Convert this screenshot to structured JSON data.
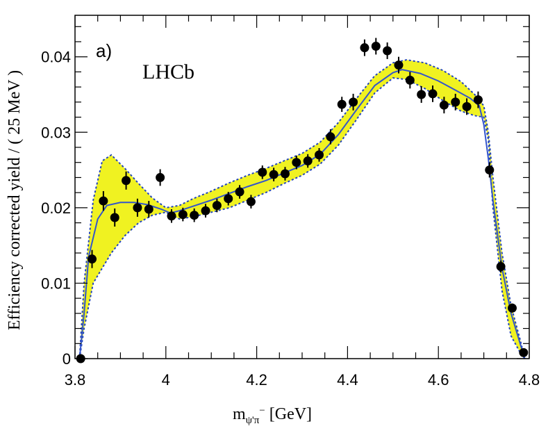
{
  "chart_data": {
    "type": "scatter",
    "panel_label": "a)",
    "experiment_label": "LHCb",
    "xlabel_main": "m",
    "xlabel_sub": "ψ'π",
    "xlabel_sup": "−",
    "xlabel_unit": " [GeV]",
    "ylabel": "Efficiency corrected yield / ( 25 MeV )",
    "xlim": [
      3.8,
      4.8
    ],
    "ylim": [
      0,
      0.0455
    ],
    "x_ticks": [
      3.8,
      4.0,
      4.2,
      4.4,
      4.6,
      4.8
    ],
    "x_tick_labels": [
      "3.8",
      "4",
      "4.2",
      "4.4",
      "4.6",
      "4.8"
    ],
    "y_ticks": [
      0,
      0.01,
      0.02,
      0.03,
      0.04
    ],
    "y_tick_labels": [
      "0",
      "0.01",
      "0.02",
      "0.03",
      "0.04"
    ],
    "colors": {
      "band_fill": "#f0f221",
      "fit_line": "#3355cc",
      "band_edge": "#2244bb",
      "points": "#000000"
    },
    "data_points": {
      "x": [
        3.8125,
        3.8375,
        3.8625,
        3.8875,
        3.9125,
        3.9375,
        3.9625,
        3.9875,
        4.0125,
        4.0375,
        4.0625,
        4.0875,
        4.1125,
        4.1375,
        4.1625,
        4.1875,
        4.2125,
        4.2375,
        4.2625,
        4.2875,
        4.3125,
        4.3375,
        4.3625,
        4.3875,
        4.4125,
        4.4375,
        4.4625,
        4.4875,
        4.5125,
        4.5375,
        4.5625,
        4.5875,
        4.6125,
        4.6375,
        4.6625,
        4.6875,
        4.7125,
        4.7375,
        4.7625,
        4.7875
      ],
      "y": [
        0.0,
        0.0132,
        0.0209,
        0.0187,
        0.0236,
        0.02,
        0.0198,
        0.024,
        0.0189,
        0.0191,
        0.019,
        0.0196,
        0.0203,
        0.0212,
        0.0221,
        0.0208,
        0.0247,
        0.0244,
        0.0245,
        0.026,
        0.0262,
        0.027,
        0.0294,
        0.0337,
        0.034,
        0.0412,
        0.0414,
        0.0408,
        0.0389,
        0.0369,
        0.035,
        0.0351,
        0.0336,
        0.034,
        0.0334,
        0.0343,
        0.025,
        0.0122,
        0.0067,
        0.0008
      ],
      "err": [
        0.0004,
        0.0012,
        0.0013,
        0.0012,
        0.0012,
        0.0012,
        0.0011,
        0.0011,
        0.0009,
        0.0009,
        0.0009,
        0.0009,
        0.0009,
        0.0009,
        0.0009,
        0.0009,
        0.0009,
        0.0009,
        0.0009,
        0.0009,
        0.0009,
        0.0009,
        0.001,
        0.001,
        0.0011,
        0.0011,
        0.0011,
        0.0011,
        0.0011,
        0.0011,
        0.0011,
        0.0011,
        0.0011,
        0.0011,
        0.0011,
        0.0011,
        0.001,
        0.0008,
        0.0006,
        0.0004
      ]
    },
    "fit_curve": {
      "x": [
        3.81,
        3.82,
        3.83,
        3.85,
        3.87,
        3.9,
        3.93,
        3.96,
        3.99,
        4.01,
        4.03,
        4.06,
        4.1,
        4.14,
        4.18,
        4.22,
        4.26,
        4.3,
        4.34,
        4.38,
        4.42,
        4.46,
        4.5,
        4.52,
        4.56,
        4.6,
        4.64,
        4.67,
        4.69,
        4.7,
        4.71,
        4.72,
        4.74,
        4.76,
        4.78,
        4.79
      ],
      "y": [
        0.0,
        0.006,
        0.0135,
        0.0185,
        0.0203,
        0.0207,
        0.0207,
        0.0204,
        0.0198,
        0.0193,
        0.0196,
        0.0202,
        0.021,
        0.0219,
        0.0228,
        0.0236,
        0.0246,
        0.0256,
        0.0271,
        0.0297,
        0.033,
        0.0362,
        0.0379,
        0.0383,
        0.0378,
        0.0368,
        0.0355,
        0.0345,
        0.0335,
        0.031,
        0.0265,
        0.021,
        0.012,
        0.006,
        0.002,
        0.0
      ]
    },
    "band_upper": {
      "x": [
        3.81,
        3.82,
        3.84,
        3.86,
        3.88,
        3.91,
        3.94,
        3.97,
        4.0,
        4.03,
        4.06,
        4.1,
        4.14,
        4.18,
        4.22,
        4.26,
        4.3,
        4.34,
        4.38,
        4.42,
        4.46,
        4.5,
        4.53,
        4.57,
        4.61,
        4.65,
        4.68,
        4.7,
        4.71,
        4.72,
        4.74,
        4.76,
        4.78,
        4.79
      ],
      "y": [
        0.0,
        0.01,
        0.021,
        0.0262,
        0.027,
        0.0252,
        0.0232,
        0.0213,
        0.02,
        0.0203,
        0.0212,
        0.0222,
        0.0233,
        0.0243,
        0.0252,
        0.0262,
        0.0272,
        0.0287,
        0.0313,
        0.0345,
        0.0375,
        0.0392,
        0.0396,
        0.0392,
        0.0382,
        0.0367,
        0.035,
        0.0335,
        0.03,
        0.024,
        0.014,
        0.007,
        0.0025,
        0.0
      ]
    },
    "band_lower": {
      "x": [
        3.81,
        3.82,
        3.84,
        3.86,
        3.88,
        3.91,
        3.94,
        3.97,
        4.0,
        4.03,
        4.06,
        4.1,
        4.14,
        4.18,
        4.22,
        4.26,
        4.3,
        4.34,
        4.38,
        4.42,
        4.46,
        4.5,
        4.53,
        4.57,
        4.61,
        4.65,
        4.68,
        4.7,
        4.71,
        4.72,
        4.74,
        4.76,
        4.78,
        4.79
      ],
      "y": [
        0.0,
        0.004,
        0.01,
        0.012,
        0.014,
        0.0163,
        0.018,
        0.019,
        0.0194,
        0.0185,
        0.0188,
        0.0194,
        0.02,
        0.021,
        0.022,
        0.0232,
        0.0243,
        0.0258,
        0.0283,
        0.0317,
        0.0352,
        0.0372,
        0.037,
        0.0358,
        0.0342,
        0.0328,
        0.0322,
        0.032,
        0.029,
        0.02,
        0.009,
        0.003,
        0.0008,
        0.0
      ]
    }
  }
}
